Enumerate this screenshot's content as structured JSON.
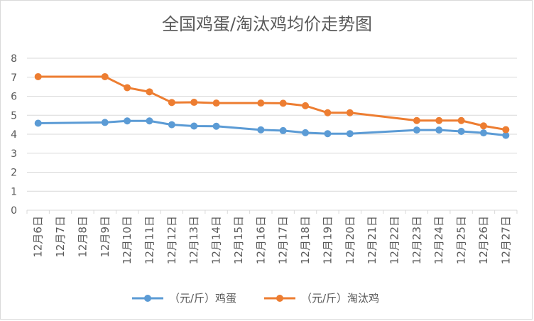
{
  "chart_data": {
    "type": "line",
    "title": "全国鸡蛋/淘汰鸡均价走势图",
    "xlabel": "",
    "ylabel": "",
    "ylim": [
      0,
      8
    ],
    "yticks": [
      "0",
      "1",
      "2",
      "3",
      "4",
      "5",
      "6",
      "7",
      "8"
    ],
    "grid": true,
    "legend_position": "bottom",
    "categories": [
      "12月6日",
      "12月7日",
      "12月8日",
      "12月9日",
      "12月10日",
      "12月11日",
      "12月12日",
      "12月13日",
      "12月14日",
      "12月15日",
      "12月16日",
      "12月17日",
      "12月18日",
      "12月19日",
      "12月20日",
      "12月21日",
      "12月22日",
      "12月23日",
      "12月24日",
      "12月25日",
      "12月26日",
      "12月27日"
    ],
    "series": [
      {
        "name": "（元/斤）鸡蛋",
        "color": "#5b9bd5",
        "values": [
          4.58,
          null,
          null,
          4.62,
          4.7,
          4.7,
          4.5,
          4.43,
          4.42,
          null,
          4.23,
          4.19,
          4.08,
          4.03,
          4.03,
          null,
          null,
          4.22,
          4.22,
          4.15,
          4.07,
          3.94
        ]
      },
      {
        "name": "（元/斤）淘汰鸡",
        "color": "#ed7d31",
        "values": [
          7.03,
          null,
          null,
          7.03,
          6.45,
          6.23,
          5.67,
          5.68,
          5.64,
          null,
          5.64,
          5.63,
          5.5,
          5.13,
          5.13,
          null,
          null,
          4.72,
          4.72,
          4.72,
          4.44,
          4.24
        ]
      }
    ]
  }
}
